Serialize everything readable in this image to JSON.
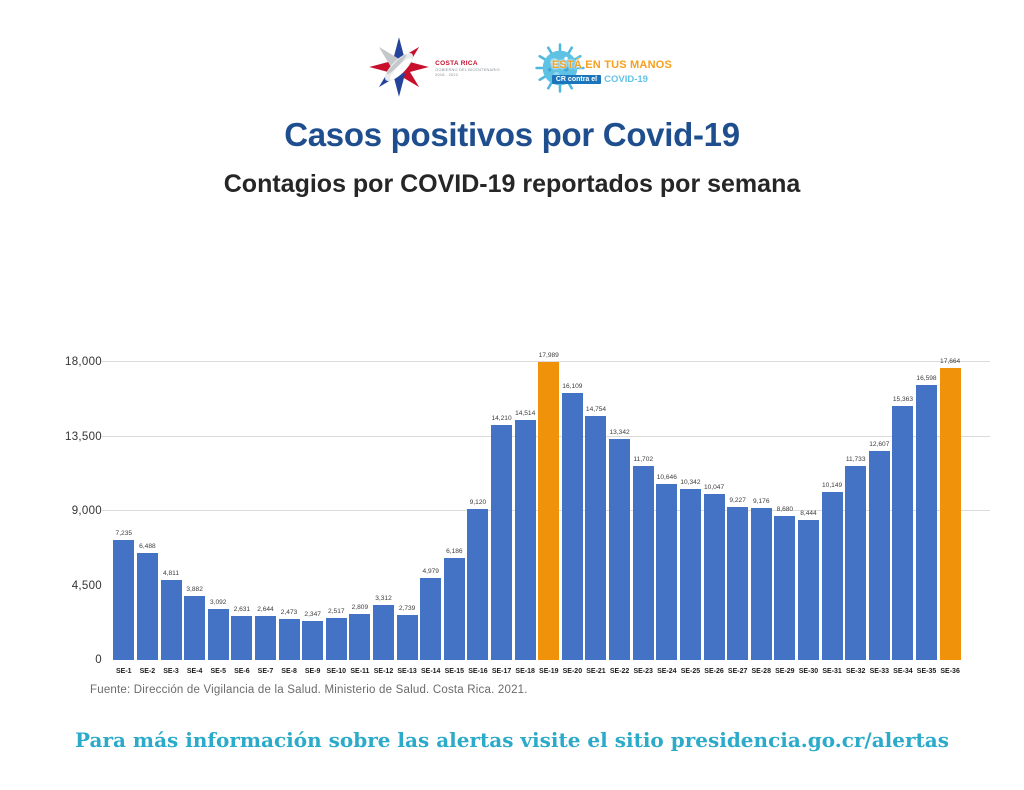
{
  "page": {
    "title": "Casos positivos por Covid-19",
    "subtitle": "Contagios por COVID-19 reportados por semana",
    "source": "Fuente: Dirección de Vigilancia de la Salud. Ministerio de Salud. Costa Rica. 2021.",
    "footer_link": "Para más información sobre las alertas visite el sitio presidencia.go.cr/alertas"
  },
  "logos": {
    "bicentenario": {
      "name": "COSTA RICA",
      "sub1": "GOBIERNO DEL BICENTENARIO",
      "sub2": "2018 - 2022"
    },
    "manos": {
      "line1": "ESTÁ EN TUS MANOS",
      "cr": "CR contra el",
      "covid": "COVID-19"
    }
  },
  "colors": {
    "bar": "#4472C4",
    "bar_highlight": "#F0930B",
    "title": "#1F4E8F",
    "footer_link": "#2BAAC9",
    "gridline": "#DBDBDB"
  },
  "chart_data": {
    "type": "bar",
    "title": "Contagios por COVID-19 reportados por semana",
    "xlabel": "",
    "ylabel": "",
    "ylim": [
      0,
      18000
    ],
    "legend": "none",
    "grid": true,
    "gridline_values": [
      9000,
      13500,
      18000
    ],
    "yticks": [
      {
        "value": 18000,
        "label": "18,000"
      },
      {
        "value": 13500,
        "label": "13,500"
      },
      {
        "value": 9000,
        "label": "9,000"
      },
      {
        "value": 4500,
        "label": "4,500"
      },
      {
        "value": 0,
        "label": "0"
      }
    ],
    "categories": [
      "SE-1",
      "SE-2",
      "SE-3",
      "SE-4",
      "SE-5",
      "SE-6",
      "SE-7",
      "SE-8",
      "SE-9",
      "SE-10",
      "SE-11",
      "SE-12",
      "SE-13",
      "SE-14",
      "SE-15",
      "SE-16",
      "SE-17",
      "SE-18",
      "SE-19",
      "SE-20",
      "SE-21",
      "SE-22",
      "SE-23",
      "SE-24",
      "SE-25",
      "SE-26",
      "SE-27",
      "SE-28",
      "SE-29",
      "SE-30",
      "SE-31",
      "SE-32",
      "SE-33",
      "SE-34",
      "SE-35",
      "SE-36"
    ],
    "values": [
      7235,
      6488,
      4811,
      3882,
      3092,
      2631,
      2644,
      2473,
      2347,
      2517,
      2809,
      3312,
      2739,
      4979,
      6186,
      9120,
      14210,
      14514,
      17989,
      16109,
      14754,
      13342,
      11702,
      10646,
      10342,
      10047,
      9227,
      9176,
      8680,
      8444,
      10149,
      11733,
      12607,
      15363,
      16598,
      17664
    ],
    "value_labels": [
      "7,235",
      "6,488",
      "4,811",
      "3,882",
      "3,092",
      "2,631",
      "2,644",
      "2,473",
      "2,347",
      "2,517",
      "2,809",
      "3,312",
      "2,739",
      "4,979",
      "6,186",
      "9,120",
      "14,210",
      "14,514",
      "17,989",
      "16,109",
      "14,754",
      "13,342",
      "11,702",
      "10,646",
      "10,342",
      "10,047",
      "9,227",
      "9,176",
      "8,680",
      "8,444",
      "10,149",
      "11,733",
      "12,607",
      "15,363",
      "16,598",
      "17,664"
    ],
    "highlight_indices": [
      18,
      35
    ],
    "bar_color": "#4472C4",
    "highlight_color": "#F0930B"
  }
}
